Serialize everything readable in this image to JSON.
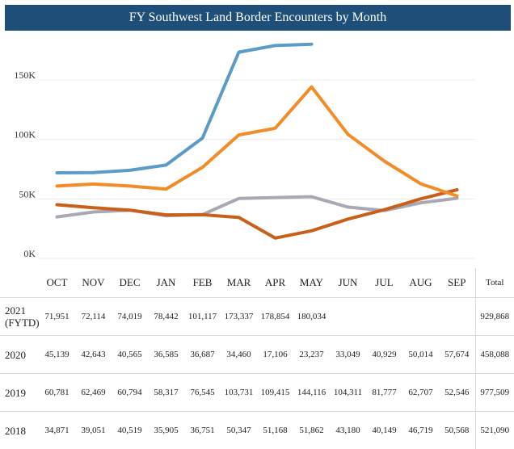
{
  "title": "FY Southwest Land Border Encounters by Month",
  "table": {
    "total_label": "Total"
  },
  "chart_data": {
    "type": "line",
    "title": "FY Southwest Land Border Encounters by Month",
    "categories": [
      "OCT",
      "NOV",
      "DEC",
      "JAN",
      "FEB",
      "MAR",
      "APR",
      "MAY",
      "JUN",
      "JUL",
      "AUG",
      "SEP"
    ],
    "y_ticks": [
      {
        "value": 0,
        "label": "0K"
      },
      {
        "value": 50000,
        "label": "50K"
      },
      {
        "value": 100000,
        "label": "100K"
      },
      {
        "value": 150000,
        "label": "150K"
      }
    ],
    "ylim": [
      0,
      190000
    ],
    "grid": true,
    "series": [
      {
        "name": "2021 (FYTD)",
        "color": "#5b9bc8",
        "values": [
          71951,
          72114,
          74019,
          78442,
          101117,
          173337,
          178854,
          180034,
          null,
          null,
          null,
          null
        ],
        "display": [
          "71,951",
          "72,114",
          "74,019",
          "78,442",
          "101,117",
          "173,337",
          "178,854",
          "180,034",
          "",
          "",
          "",
          ""
        ],
        "total": "929,868"
      },
      {
        "name": "2020",
        "color": "#c8601a",
        "values": [
          45139,
          42643,
          40565,
          36585,
          36687,
          34460,
          17106,
          23237,
          33049,
          40929,
          50014,
          57674
        ],
        "display": [
          "45,139",
          "42,643",
          "40,565",
          "36,585",
          "36,687",
          "34,460",
          "17,106",
          "23,237",
          "33,049",
          "40,929",
          "50,014",
          "57,674"
        ],
        "total": "458,088"
      },
      {
        "name": "2019",
        "color": "#f28c28",
        "values": [
          60781,
          62469,
          60794,
          58317,
          76545,
          103731,
          109415,
          144116,
          104311,
          81777,
          62707,
          52546
        ],
        "display": [
          "60,781",
          "62,469",
          "60,794",
          "58,317",
          "76,545",
          "103,731",
          "109,415",
          "144,116",
          "104,311",
          "81,777",
          "62,707",
          "52,546"
        ],
        "total": "977,509"
      },
      {
        "name": "2018",
        "color": "#a9a9b6",
        "values": [
          34871,
          39051,
          40519,
          35905,
          36751,
          50347,
          51168,
          51862,
          43180,
          40149,
          46719,
          50568
        ],
        "display": [
          "34,871",
          "39,051",
          "40,519",
          "35,905",
          "36,751",
          "50,347",
          "51,168",
          "51,862",
          "43,180",
          "40,149",
          "46,719",
          "50,568"
        ],
        "total": "521,090"
      }
    ],
    "series_order_drawn": [
      3,
      1,
      2,
      0
    ]
  }
}
